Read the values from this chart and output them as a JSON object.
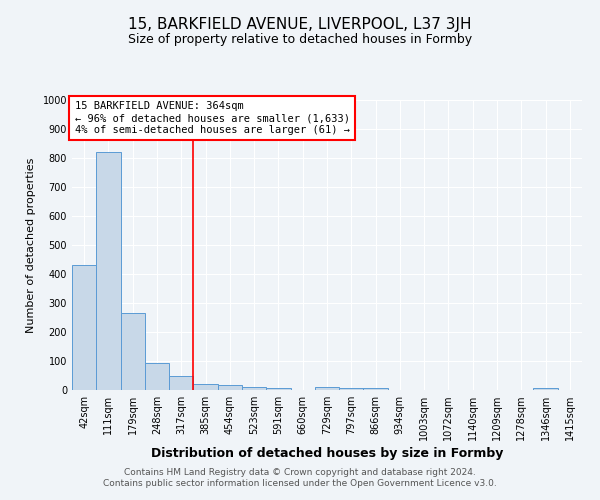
{
  "title": "15, BARKFIELD AVENUE, LIVERPOOL, L37 3JH",
  "subtitle": "Size of property relative to detached houses in Formby",
  "xlabel": "Distribution of detached houses by size in Formby",
  "ylabel": "Number of detached properties",
  "categories": [
    "42sqm",
    "111sqm",
    "179sqm",
    "248sqm",
    "317sqm",
    "385sqm",
    "454sqm",
    "523sqm",
    "591sqm",
    "660sqm",
    "729sqm",
    "797sqm",
    "866sqm",
    "934sqm",
    "1003sqm",
    "1072sqm",
    "1140sqm",
    "1209sqm",
    "1278sqm",
    "1346sqm",
    "1415sqm"
  ],
  "values": [
    430,
    820,
    265,
    92,
    47,
    22,
    17,
    12,
    8,
    0,
    10,
    7,
    8,
    0,
    0,
    0,
    0,
    0,
    0,
    8,
    0
  ],
  "bar_color": "#c8d8e8",
  "bar_edge_color": "#5b9bd5",
  "red_line_x": 4.5,
  "annotation_text": "15 BARKFIELD AVENUE: 364sqm\n← 96% of detached houses are smaller (1,633)\n4% of semi-detached houses are larger (61) →",
  "annotation_box_color": "white",
  "annotation_box_edge_color": "red",
  "red_line_color": "red",
  "ylim": [
    0,
    1000
  ],
  "yticks": [
    0,
    100,
    200,
    300,
    400,
    500,
    600,
    700,
    800,
    900,
    1000
  ],
  "footer": "Contains HM Land Registry data © Crown copyright and database right 2024.\nContains public sector information licensed under the Open Government Licence v3.0.",
  "background_color": "#f0f4f8",
  "grid_color": "white",
  "title_fontsize": 11,
  "subtitle_fontsize": 9,
  "xlabel_fontsize": 9,
  "ylabel_fontsize": 8,
  "tick_fontsize": 7,
  "annotation_fontsize": 7.5,
  "footer_fontsize": 6.5
}
